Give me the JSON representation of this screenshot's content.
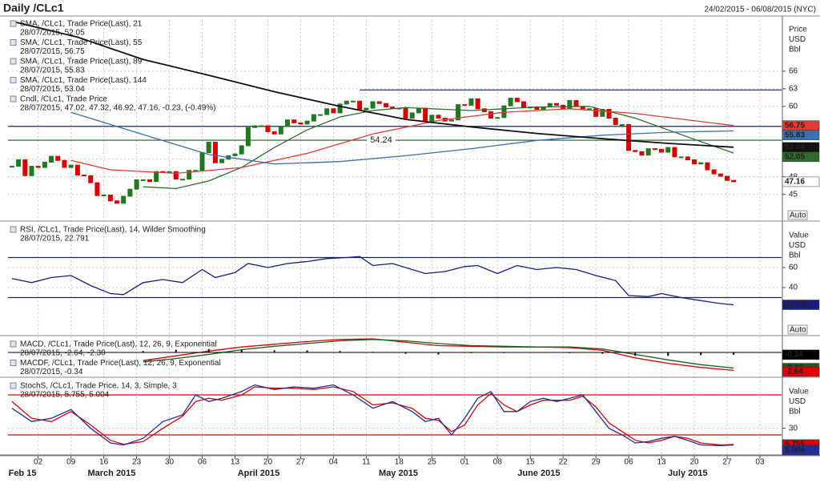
{
  "header": {
    "title": "Daily /CLc1",
    "range": "24/02/2015 - 06/08/2015 (NYC)"
  },
  "x_axis": {
    "xlim": [
      -0.6,
      117.3
    ],
    "xticks": [
      {
        "value": 4,
        "label": "02"
      },
      {
        "value": 9,
        "label": "09"
      },
      {
        "value": 14,
        "label": "16"
      },
      {
        "value": 19,
        "label": "23"
      },
      {
        "value": 24,
        "label": "30"
      },
      {
        "value": 29,
        "label": "06"
      },
      {
        "value": 34,
        "label": "13"
      },
      {
        "value": 39,
        "label": "20"
      },
      {
        "value": 44,
        "label": "27"
      },
      {
        "value": 49,
        "label": "04"
      },
      {
        "value": 54,
        "label": "11"
      },
      {
        "value": 59,
        "label": "18"
      },
      {
        "value": 64,
        "label": "25"
      },
      {
        "value": 69,
        "label": "01"
      },
      {
        "value": 74,
        "label": "08"
      },
      {
        "value": 79,
        "label": "15"
      },
      {
        "value": 84,
        "label": "22"
      },
      {
        "value": 89,
        "label": "29"
      },
      {
        "value": 94,
        "label": "06"
      },
      {
        "value": 99,
        "label": "13"
      },
      {
        "value": 104,
        "label": "20"
      },
      {
        "value": 109,
        "label": "27"
      },
      {
        "value": 114,
        "label": "03"
      }
    ],
    "months": [
      {
        "value": 1.6,
        "label": "Feb 15"
      },
      {
        "value": 15.2,
        "label": "March 2015"
      },
      {
        "value": 37.6,
        "label": "April 2015"
      },
      {
        "value": 58.9,
        "label": "May 2015"
      },
      {
        "value": 80.3,
        "label": "June 2015"
      },
      {
        "value": 103,
        "label": "July 2015"
      }
    ]
  },
  "chart_data": [
    {
      "type": "candlestick",
      "axis_labels": [
        "Price",
        "USD",
        "Bbl"
      ],
      "auto": "Auto",
      "ylim": [
        40.6,
        75.4
      ],
      "yticks": [
        66,
        63,
        60,
        51,
        48,
        45
      ],
      "grid": true,
      "hlines": [
        {
          "value": 62.8,
          "color": "#1a237e",
          "from": 53
        },
        {
          "value": 56.6,
          "color": "#1a237e"
        },
        {
          "value": 54.24,
          "color": "#1b5e20",
          "printed": true
        }
      ],
      "series": [
        {
          "name": "SMA, /CLc1, Trade Price(Last), 21",
          "detail": "28/07/2015, 52.05",
          "color": "#2e6b2e",
          "x": [
            20,
            25,
            30,
            35,
            40,
            45,
            50,
            55,
            60,
            70,
            80,
            88,
            95,
            100,
            105,
            110
          ],
          "values": [
            46.3,
            46.0,
            47.3,
            49.6,
            53.0,
            56.0,
            58.2,
            59.3,
            59.8,
            59.3,
            59.9,
            60.0,
            58.0,
            56.0,
            54.0,
            52.05
          ]
        },
        {
          "name": "SMA, /CLc1, Trade Price(Last), 55",
          "detail": "28/07/2015, 56.75",
          "color": "#e53935",
          "x": [
            9,
            15,
            25,
            35,
            45,
            55,
            65,
            75,
            85,
            95,
            110
          ],
          "values": [
            50.8,
            49.2,
            48.6,
            49.6,
            52.0,
            55.3,
            57.6,
            59.0,
            59.6,
            58.8,
            56.75
          ]
        },
        {
          "name": "SMA, /CLc1, Trade Price(Last), 89",
          "detail": "28/07/2015, 55.83",
          "color": "#3a6fb0",
          "x": [
            9,
            20,
            30,
            40,
            50,
            60,
            70,
            80,
            90,
            100,
            110
          ],
          "values": [
            59.0,
            55.2,
            51.8,
            50.2,
            50.6,
            51.6,
            52.8,
            54.2,
            55.1,
            55.6,
            55.83
          ]
        },
        {
          "name": "SMA, /CLc1, Trade Price(Last), 144",
          "detail": "28/07/2015, 53.04",
          "color": "#111111",
          "x": [
            0,
            10,
            20,
            30,
            40,
            50,
            60,
            70,
            80,
            90,
            100,
            110
          ],
          "values": [
            74.5,
            71.8,
            68,
            65.3,
            62.5,
            60.0,
            57.8,
            56.5,
            55.4,
            54.5,
            53.7,
            53.04
          ]
        }
      ],
      "candles": {
        "name": "Cndl, /CLc1, Trade Price",
        "detail": "28/07/2015, 47.02, 47.32, 46.92, 47.16, -0.23, (-0.49%)",
        "up_color": "#1e7a1e",
        "down_color": "#e00000",
        "x": [
          0,
          1,
          2,
          3,
          4,
          5,
          6,
          7,
          8,
          9,
          10,
          11,
          12,
          13,
          14,
          15,
          16,
          17,
          18,
          19,
          20,
          21,
          22,
          23,
          24,
          25,
          26,
          27,
          28,
          29,
          30,
          31,
          32,
          33,
          34,
          35,
          36,
          37,
          38,
          39,
          40,
          41,
          42,
          43,
          44,
          45,
          46,
          47,
          48,
          49,
          50,
          51,
          52,
          53,
          54,
          55,
          56,
          57,
          58,
          59,
          60,
          61,
          62,
          63,
          64,
          65,
          66,
          67,
          68,
          69,
          70,
          71,
          72,
          73,
          74,
          75,
          76,
          77,
          78,
          79,
          80,
          81,
          82,
          83,
          84,
          85,
          86,
          87,
          88,
          89,
          90,
          91,
          92,
          93,
          94,
          95,
          96,
          97,
          98,
          99,
          100,
          101,
          102,
          103,
          104,
          105,
          106,
          107,
          108,
          109,
          110
        ],
        "values": [
          49.8,
          50.9,
          48.2,
          49.8,
          49.6,
          50.5,
          51.5,
          50.8,
          49.6,
          50.0,
          48.3,
          48.2,
          47.0,
          44.8,
          44.9,
          43.9,
          43.5,
          44.7,
          45.9,
          47.5,
          47.5,
          47.2,
          48.9,
          48.8,
          48.9,
          47.6,
          47.6,
          49.1,
          49.1,
          52.1,
          53.9,
          50.4,
          51.0,
          51.6,
          51.9,
          53.3,
          56.4,
          56.7,
          56.7,
          55.7,
          55.3,
          56.6,
          57.7,
          57.2,
          57.0,
          57.5,
          58.6,
          58.6,
          59.6,
          58.9,
          60.4,
          60.9,
          60.9,
          59.4,
          59.7,
          60.8,
          60.5,
          59.9,
          59.7,
          59.7,
          58.0,
          58.9,
          59.7,
          57.5,
          58.5,
          58.0,
          57.5,
          57.7,
          60.3,
          60.2,
          61.3,
          59.6,
          59.1,
          58.0,
          58.1,
          60.1,
          61.4,
          60.8,
          59.9,
          59.9,
          59.5,
          59.9,
          60.5,
          60.2,
          59.6,
          61.0,
          60.0,
          59.6,
          59.6,
          58.3,
          59.5,
          58.0,
          56.9,
          56.9,
          52.5,
          52.3,
          51.7,
          52.8,
          52.7,
          52.2,
          53.0,
          51.4,
          51.4,
          50.9,
          50.2,
          50.4,
          49.2,
          48.5,
          48.1,
          47.4,
          47.16
        ]
      }
    },
    {
      "type": "line",
      "axis_labels": [
        "Value",
        "USD",
        "Bbl"
      ],
      "auto": "Auto",
      "ylim": [
        -7.2,
        105.6
      ],
      "yticks": [
        60,
        40
      ],
      "grid": true,
      "hlines": [
        {
          "value": 70,
          "color": "#1a237e"
        },
        {
          "value": 30,
          "color": "#1a237e"
        }
      ],
      "series": [
        {
          "name": "RSI, /CLc1, Trade Price(Last), 14, Wilder Smoothing",
          "detail": "28/07/2015, 22.791",
          "color": "#1a1a8c",
          "x": [
            0,
            3,
            6,
            9,
            12,
            15,
            17,
            20,
            23,
            26,
            29,
            31,
            34,
            36,
            39,
            42,
            45,
            48,
            51,
            53,
            55,
            58,
            61,
            63,
            66,
            69,
            71,
            74,
            77,
            80,
            83,
            86,
            89,
            92,
            94,
            97,
            99,
            102,
            105,
            108,
            110
          ],
          "values": [
            49,
            45,
            50,
            52,
            42,
            34,
            33,
            45,
            48,
            45,
            58,
            50,
            55,
            64,
            60,
            64,
            66,
            69,
            70,
            71,
            62,
            64,
            58,
            54,
            56,
            61,
            62,
            54,
            62,
            58,
            60,
            58,
            52,
            47,
            32,
            31,
            34,
            30,
            27,
            24,
            22.791
          ]
        }
      ]
    },
    {
      "type": "macd",
      "ylim": [
        -3.53,
        2.35
      ],
      "yticks": [],
      "series": [
        {
          "name": "MACD, /CLc1, Trade Price(Last), 12, 26, 9, Exponential",
          "detail": "28/07/2015, -2.64, -2.30",
          "color": "#e00000",
          "x": [
            20,
            25,
            30,
            35,
            40,
            45,
            50,
            55,
            60,
            65,
            70,
            75,
            80,
            85,
            90,
            95,
            100,
            105,
            110
          ],
          "values": [
            -1.2,
            -0.5,
            0.2,
            0.8,
            1.2,
            1.6,
            1.9,
            2.0,
            1.5,
            1.0,
            0.9,
            0.8,
            0.8,
            0.7,
            0.3,
            -0.8,
            -1.6,
            -2.2,
            -2.64
          ]
        },
        {
          "color": "#1b5e20",
          "x": [
            20,
            25,
            30,
            35,
            40,
            45,
            50,
            55,
            60,
            65,
            70,
            75,
            80,
            85,
            90,
            95,
            100,
            105,
            110
          ],
          "values": [
            -1.4,
            -0.9,
            -0.3,
            0.4,
            0.9,
            1.3,
            1.7,
            1.9,
            1.7,
            1.3,
            1.0,
            0.9,
            0.8,
            0.8,
            0.5,
            -0.3,
            -1.1,
            -1.8,
            -2.3
          ],
          "last_label": "-2.30"
        },
        {
          "name": "MACDF, /CLc1, Trade Price(Last), 12, 26, 9, Exponential",
          "detail": "28/07/2015, -0.34",
          "color": "#000000",
          "kind": "bar",
          "x": [
            20,
            25,
            30,
            35,
            40,
            45,
            50,
            55,
            60,
            65,
            70,
            75,
            80,
            85,
            90,
            95,
            100,
            105,
            110
          ],
          "values": [
            0.2,
            0.4,
            0.5,
            0.4,
            0.3,
            0.3,
            0.2,
            0.1,
            -0.2,
            -0.3,
            -0.1,
            -0.1,
            0,
            -0.1,
            -0.2,
            -0.5,
            -0.5,
            -0.4,
            -0.34
          ]
        }
      ]
    },
    {
      "type": "line",
      "axis_labels": [
        "Value",
        "USD",
        "Bbl"
      ],
      "ylim": [
        -10,
        105.2
      ],
      "yticks": [
        30
      ],
      "grid": true,
      "hlines": [
        {
          "value": 80,
          "color": "#e00000"
        },
        {
          "value": 20,
          "color": "#e00000"
        }
      ],
      "series": [
        {
          "name": "StochS, /CLc1, Trade Price, 14, 3, Simple, 3",
          "detail": "28/07/2015, 5.755, 5.004",
          "color": "#e00000",
          "x": [
            0,
            3,
            6,
            9,
            12,
            15,
            17,
            20,
            23,
            26,
            28,
            30,
            32,
            35,
            37,
            40,
            43,
            46,
            49,
            52,
            55,
            58,
            61,
            63,
            65,
            67,
            69,
            71,
            73,
            75,
            77,
            79,
            81,
            83,
            85,
            87,
            89,
            91,
            93,
            95,
            97,
            99,
            101,
            103,
            105,
            108,
            110
          ],
          "values": [
            70,
            45,
            40,
            55,
            35,
            12,
            6,
            10,
            30,
            48,
            70,
            75,
            72,
            80,
            92,
            90,
            90,
            88,
            92,
            85,
            65,
            68,
            60,
            45,
            42,
            25,
            35,
            65,
            82,
            65,
            55,
            65,
            72,
            72,
            72,
            78,
            62,
            38,
            25,
            12,
            8,
            12,
            18,
            15,
            8,
            5,
            5.755
          ]
        },
        {
          "color": "#1f2f99",
          "x": [
            0,
            3,
            6,
            9,
            12,
            15,
            17,
            20,
            23,
            26,
            28,
            30,
            32,
            35,
            37,
            40,
            43,
            46,
            49,
            52,
            55,
            58,
            61,
            63,
            65,
            67,
            69,
            71,
            73,
            75,
            77,
            79,
            81,
            83,
            85,
            87,
            89,
            91,
            93,
            95,
            97,
            99,
            101,
            103,
            105,
            108,
            110
          ],
          "values": [
            60,
            40,
            45,
            58,
            30,
            8,
            5,
            15,
            40,
            50,
            80,
            70,
            75,
            85,
            95,
            88,
            92,
            90,
            95,
            80,
            60,
            70,
            55,
            40,
            45,
            20,
            45,
            75,
            85,
            55,
            55,
            70,
            75,
            70,
            75,
            80,
            55,
            30,
            20,
            8,
            10,
            15,
            18,
            12,
            5,
            4,
            5.004
          ]
        }
      ]
    }
  ]
}
